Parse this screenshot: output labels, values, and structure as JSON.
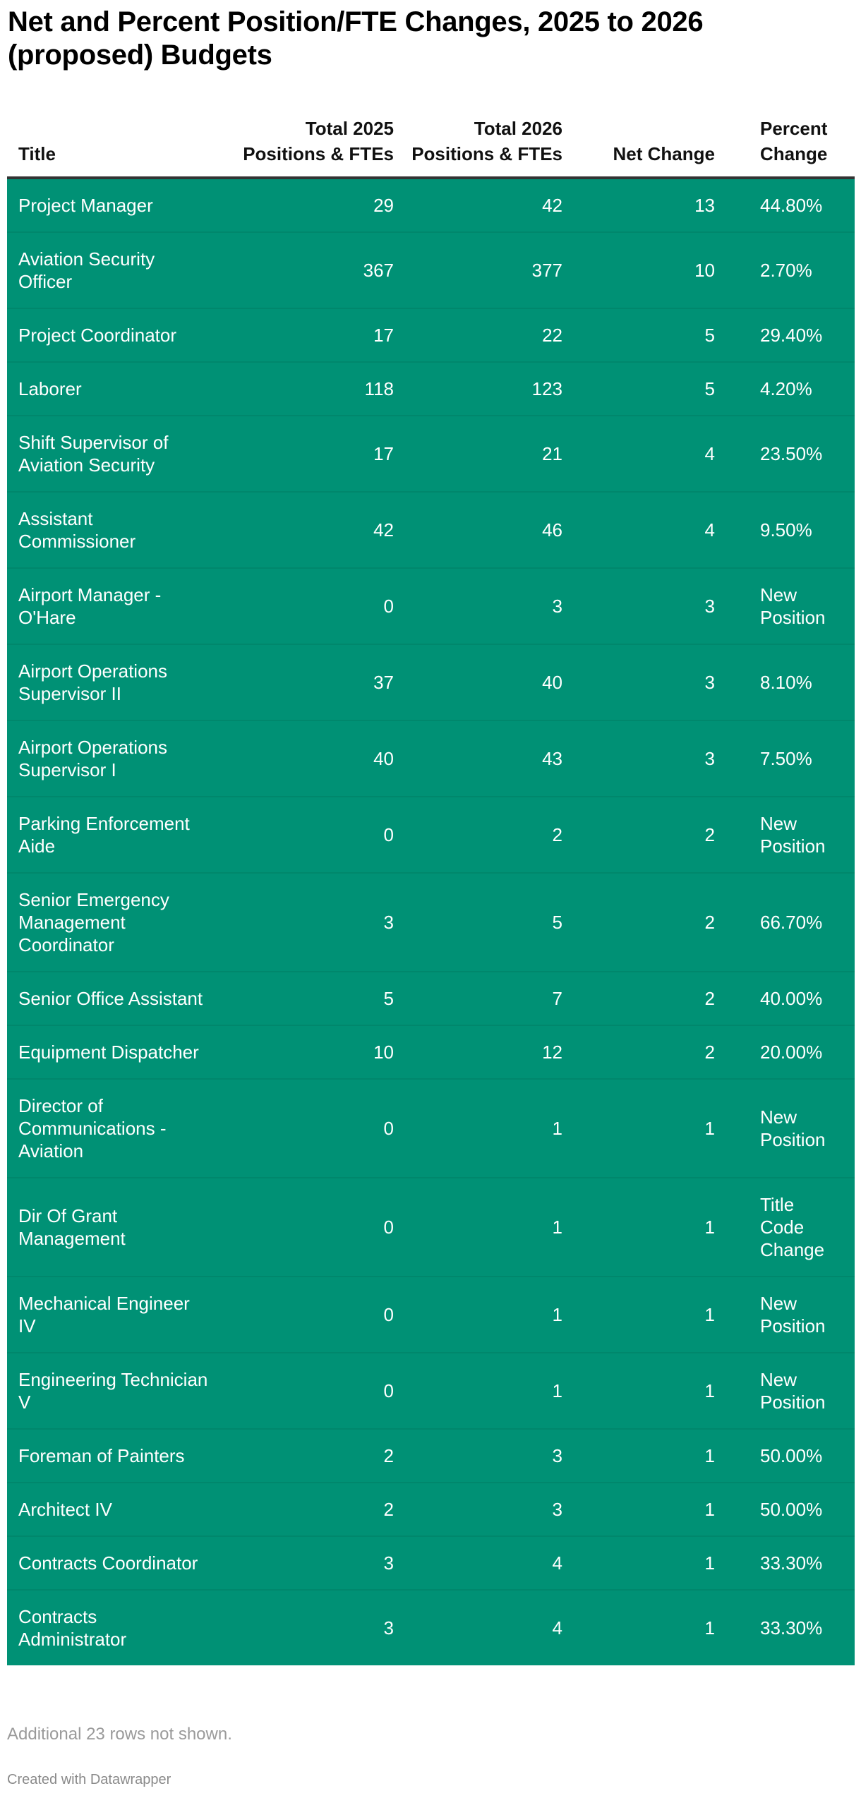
{
  "title": "Net and Percent Position/FTE Changes, 2025 to 2026 (proposed) Budgets",
  "colors": {
    "row_bg": "#009175",
    "header_rule": "#333333"
  },
  "table": {
    "headers": [
      "Title",
      "Total 2025 Positions & FTEs",
      "Total 2026 Positions & FTEs",
      "Net Change",
      "Percent Change"
    ],
    "rows": [
      [
        "Project Manager",
        "29",
        "42",
        "13",
        "44.80%"
      ],
      [
        "Aviation Security Officer",
        "367",
        "377",
        "10",
        "2.70%"
      ],
      [
        "Project Coordinator",
        "17",
        "22",
        "5",
        "29.40%"
      ],
      [
        "Laborer",
        "118",
        "123",
        "5",
        "4.20%"
      ],
      [
        "Shift Supervisor of Aviation Security",
        "17",
        "21",
        "4",
        "23.50%"
      ],
      [
        "Assistant Commissioner",
        "42",
        "46",
        "4",
        "9.50%"
      ],
      [
        "Airport Manager - O'Hare",
        "0",
        "3",
        "3",
        "New Position"
      ],
      [
        "Airport Operations Supervisor II",
        "37",
        "40",
        "3",
        "8.10%"
      ],
      [
        "Airport Operations Supervisor I",
        "40",
        "43",
        "3",
        "7.50%"
      ],
      [
        "Parking Enforcement Aide",
        "0",
        "2",
        "2",
        "New Position"
      ],
      [
        "Senior Emergency Management Coordinator",
        "3",
        "5",
        "2",
        "66.70%"
      ],
      [
        "Senior Office Assistant",
        "5",
        "7",
        "2",
        "40.00%"
      ],
      [
        "Equipment Dispatcher",
        "10",
        "12",
        "2",
        "20.00%"
      ],
      [
        "Director of Communications - Aviation",
        "0",
        "1",
        "1",
        "New Position"
      ],
      [
        "Dir Of Grant Management",
        "0",
        "1",
        "1",
        "Title Code Change"
      ],
      [
        "Mechanical Engineer IV",
        "0",
        "1",
        "1",
        "New Position"
      ],
      [
        "Engineering Technician V",
        "0",
        "1",
        "1",
        "New Position"
      ],
      [
        "Foreman of Painters",
        "2",
        "3",
        "1",
        "50.00%"
      ],
      [
        "Architect IV",
        "2",
        "3",
        "1",
        "50.00%"
      ],
      [
        "Contracts Coordinator",
        "3",
        "4",
        "1",
        "33.30%"
      ],
      [
        "Contracts Administrator",
        "3",
        "4",
        "1",
        "33.30%"
      ]
    ]
  },
  "footnote": "Additional 23 rows not shown.",
  "credit": "Created with Datawrapper"
}
